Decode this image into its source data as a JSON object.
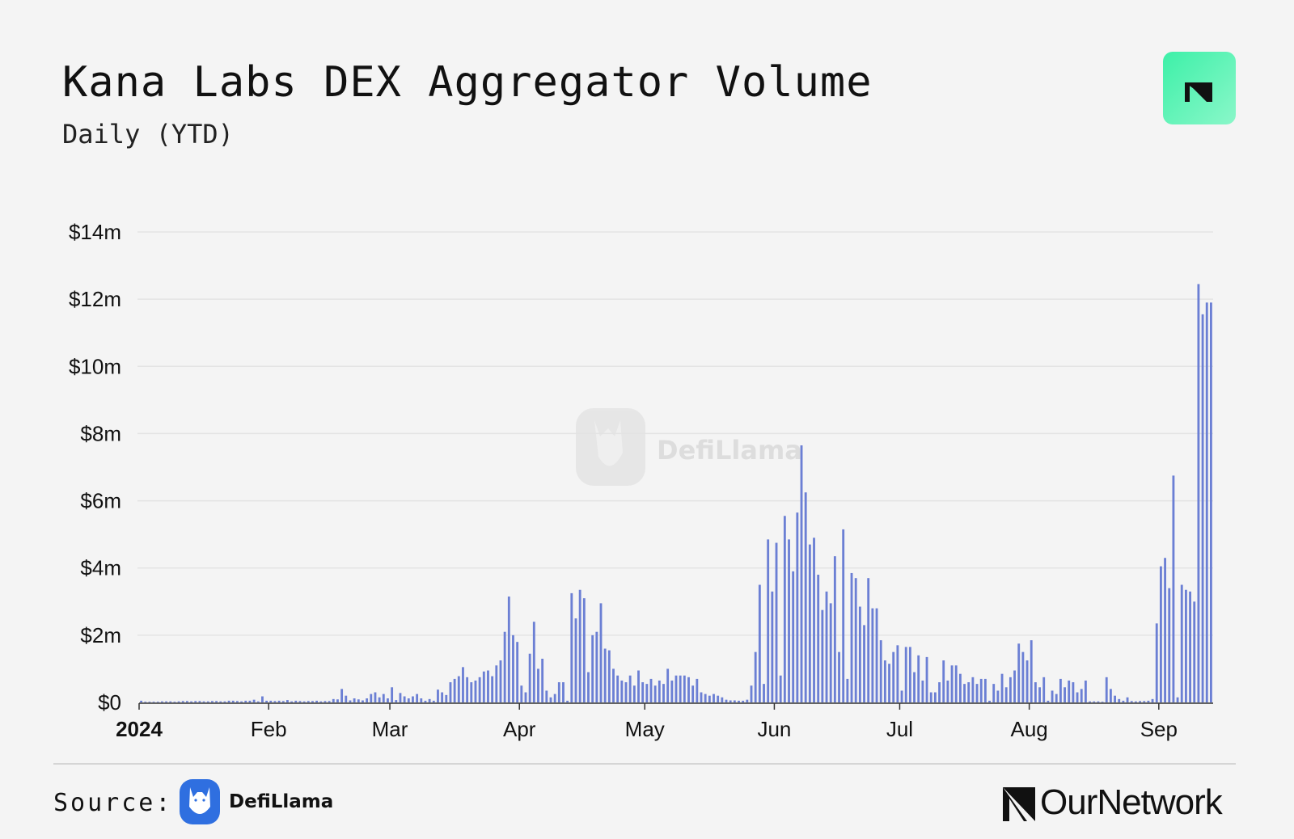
{
  "header": {
    "title": "Kana Labs DEX Aggregator Volume",
    "subtitle": "Daily (YTD)"
  },
  "footer": {
    "source_label": "Source:",
    "source_name": "DefiLlama",
    "brand": "OurNetwork"
  },
  "watermark": "DefiLlama",
  "colors": {
    "bar": "#6b7fd4",
    "logo_green": "#3df0a8",
    "defillama_blue": "#2f6fe0"
  },
  "chart_data": {
    "type": "bar",
    "title": "Kana Labs DEX Aggregator Volume",
    "subtitle": "Daily (YTD)",
    "xlabel": "",
    "ylabel": "",
    "ylim": [
      0,
      14
    ],
    "y_unit": "$m",
    "y_ticks": [
      0,
      2,
      4,
      6,
      8,
      10,
      12,
      14
    ],
    "y_tick_labels": [
      "$0",
      "$2m",
      "$4m",
      "$6m",
      "$8m",
      "$10m",
      "$12m",
      "$14m"
    ],
    "x_tick_labels": [
      "2024",
      "Feb",
      "Mar",
      "Apr",
      "May",
      "Jun",
      "Jul",
      "Aug",
      "Sep"
    ],
    "x_tick_dates": [
      "2024-01-01",
      "2024-02-01",
      "2024-03-01",
      "2024-04-01",
      "2024-05-01",
      "2024-06-01",
      "2024-07-01",
      "2024-08-01",
      "2024-09-01"
    ],
    "x_start": "2024-01-01",
    "grid": true,
    "series": [
      {
        "values": [
          0.05,
          0.02,
          0.02,
          0.02,
          0.02,
          0.03,
          0.03,
          0.03,
          0.02,
          0.03,
          0.04,
          0.04,
          0.03,
          0.04,
          0.04,
          0.03,
          0.03,
          0.04,
          0.04,
          0.03,
          0.03,
          0.05,
          0.05,
          0.04,
          0.03,
          0.05,
          0.05,
          0.08,
          0.03,
          0.18,
          0.05,
          0.05,
          0.04,
          0.05,
          0.04,
          0.07,
          0.03,
          0.05,
          0.04,
          0.03,
          0.04,
          0.04,
          0.05,
          0.03,
          0.04,
          0.04,
          0.1,
          0.09,
          0.4,
          0.2,
          0.06,
          0.12,
          0.09,
          0.06,
          0.12,
          0.25,
          0.3,
          0.15,
          0.25,
          0.12,
          0.45,
          0.07,
          0.28,
          0.18,
          0.12,
          0.18,
          0.25,
          0.12,
          0.05,
          0.1,
          0.05,
          0.38,
          0.3,
          0.22,
          0.6,
          0.7,
          0.78,
          1.05,
          0.75,
          0.6,
          0.65,
          0.75,
          0.92,
          0.95,
          0.78,
          1.1,
          1.25,
          2.1,
          3.15,
          2.0,
          1.8,
          0.5,
          0.3,
          1.45,
          2.4,
          1.0,
          1.3,
          0.35,
          0.15,
          0.25,
          0.6,
          0.6,
          0.05,
          3.25,
          2.5,
          3.35,
          3.1,
          0.9,
          2.0,
          2.1,
          2.95,
          1.6,
          1.55,
          1.0,
          0.8,
          0.65,
          0.6,
          0.8,
          0.5,
          0.95,
          0.6,
          0.55,
          0.7,
          0.5,
          0.65,
          0.55,
          1.0,
          0.65,
          0.8,
          0.8,
          0.8,
          0.75,
          0.5,
          0.7,
          0.3,
          0.25,
          0.2,
          0.25,
          0.2,
          0.15,
          0.08,
          0.06,
          0.06,
          0.05,
          0.05,
          0.08,
          0.5,
          1.5,
          3.5,
          0.55,
          4.85,
          3.3,
          4.75,
          0.8,
          5.55,
          4.85,
          3.9,
          5.65,
          7.65,
          6.25,
          4.7,
          4.9,
          3.8,
          2.75,
          3.3,
          2.95,
          4.35,
          1.5,
          5.15,
          0.7,
          3.85,
          3.7,
          2.85,
          2.3,
          3.7,
          2.8,
          2.8,
          1.85,
          1.25,
          1.15,
          1.5,
          1.7,
          0.35,
          1.65,
          1.65,
          0.9,
          1.4,
          0.65,
          1.35,
          0.3,
          0.3,
          0.6,
          1.25,
          0.65,
          1.1,
          1.1,
          0.85,
          0.55,
          0.6,
          0.75,
          0.55,
          0.7,
          0.7,
          0.05,
          0.55,
          0.35,
          0.85,
          0.45,
          0.75,
          0.95,
          1.75,
          1.5,
          1.25,
          1.85,
          0.6,
          0.45,
          0.75,
          0.05,
          0.35,
          0.25,
          0.7,
          0.45,
          0.65,
          0.6,
          0.3,
          0.4,
          0.65,
          0.03,
          0.03,
          0.03,
          0.02,
          0.75,
          0.4,
          0.2,
          0.1,
          0.05,
          0.15,
          0.04,
          0.03,
          0.04,
          0.04,
          0.05,
          0.1,
          2.35,
          4.05,
          4.3,
          3.4,
          6.75,
          0.15,
          3.5,
          3.35,
          3.3,
          3.0,
          12.45,
          11.55,
          11.9,
          11.9
        ]
      }
    ]
  }
}
